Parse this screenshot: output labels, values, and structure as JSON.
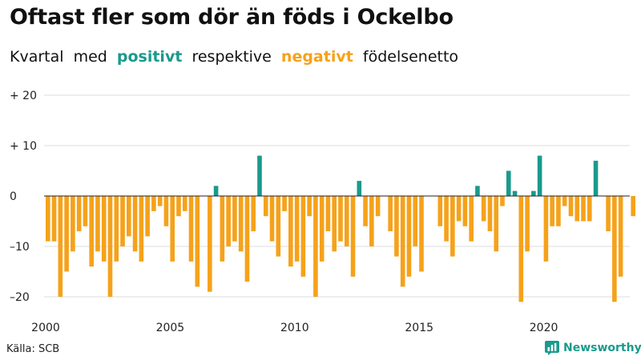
{
  "header": {
    "title": "Oftast fler som dör än föds i Ockelbo",
    "subtitle_parts": {
      "prefix": "Kvartal med",
      "positive": "positivt",
      "middle": "respektive",
      "negative": "negativt",
      "suffix": "födelsenetto"
    }
  },
  "footer": {
    "source": "Källa: SCB",
    "logo_text": "Newsworthy"
  },
  "colors": {
    "positive": "#1a9a8c",
    "negative": "#f5a21b",
    "grid": "#dddddd",
    "zero_line": "#222222"
  },
  "chart_data": {
    "type": "bar",
    "title": "Oftast fler som dör än föds i Ockelbo",
    "subtitle": "Kvartal med positivt respektive negativt födelsenetto",
    "x_start": "2000 Q1",
    "period": "quarter",
    "xticks": [
      "2000",
      "2005",
      "2010",
      "2015",
      "2020"
    ],
    "yticks": [
      20,
      10,
      0,
      -10,
      -20
    ],
    "ytick_labels": [
      "+ 20",
      "+ 10",
      "0",
      "–10",
      "–20"
    ],
    "ylim": [
      -23,
      20
    ],
    "values": [
      -9,
      -9,
      -20,
      -15,
      -11,
      -7,
      -6,
      -14,
      -11,
      -13,
      -20,
      -13,
      -10,
      -8,
      -11,
      -13,
      -8,
      -3,
      -2,
      -6,
      -13,
      -4,
      -3,
      -13,
      -18,
      0,
      -19,
      2,
      -13,
      -10,
      -9,
      -11,
      -17,
      -7,
      8,
      -4,
      -9,
      -12,
      -3,
      -14,
      -13,
      -16,
      -4,
      -20,
      -13,
      -7,
      -11,
      -9,
      -10,
      -16,
      3,
      -6,
      -10,
      -4,
      0,
      -7,
      -12,
      -18,
      -16,
      -10,
      -15,
      0,
      0,
      -6,
      -9,
      -12,
      -5,
      -6,
      -9,
      2,
      -5,
      -7,
      -11,
      -2,
      5,
      1,
      -21,
      -11,
      1,
      8,
      -13,
      -6,
      -6,
      -2,
      -4,
      -5,
      -5,
      -5,
      7,
      0,
      -7,
      -21,
      -16,
      0,
      -4
    ]
  }
}
